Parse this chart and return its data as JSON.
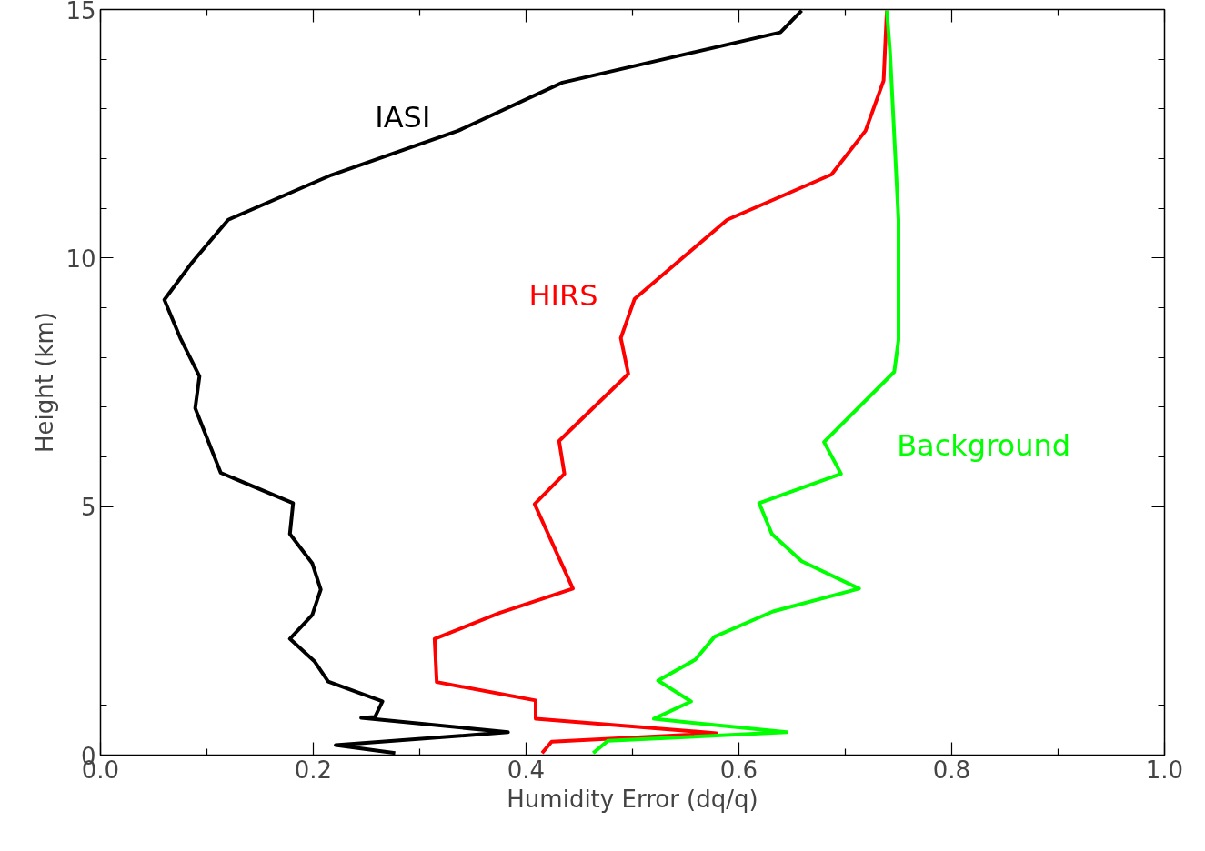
{
  "chart_data": {
    "type": "line",
    "xlabel": "Humidity Error (dq/q)",
    "ylabel": "Height (km)",
    "xlim": [
      0,
      1
    ],
    "ylim": [
      0,
      15
    ],
    "xticks": [
      {
        "value": 0,
        "label": "0.0"
      },
      {
        "value": 0.2,
        "label": "0.2"
      },
      {
        "value": 0.4,
        "label": "0.4"
      },
      {
        "value": 0.6,
        "label": "0.6"
      },
      {
        "value": 0.8,
        "label": "0.8"
      },
      {
        "value": 1.0,
        "label": "1.0"
      }
    ],
    "yticks": [
      0,
      5,
      10,
      15
    ],
    "grid": false,
    "legend": false,
    "series": [
      {
        "name": "IASI",
        "color": "#000000",
        "x": [
          0.277,
          0.221,
          0.383,
          0.245,
          0.258,
          0.265,
          0.214,
          0.201,
          0.178,
          0.199,
          0.207,
          0.199,
          0.178,
          0.181,
          0.113,
          0.089,
          0.093,
          0.075,
          0.06,
          0.086,
          0.12,
          0.217,
          0.336,
          0.434,
          0.639,
          0.659
        ],
        "values": [
          0.04,
          0.2,
          0.46,
          0.75,
          0.77,
          1.08,
          1.48,
          1.89,
          2.34,
          2.82,
          3.33,
          3.86,
          4.45,
          5.07,
          5.68,
          6.98,
          7.62,
          8.39,
          9.16,
          9.91,
          10.77,
          11.67,
          12.56,
          13.53,
          14.54,
          14.98
        ]
      },
      {
        "name": "HIRS",
        "color": "#ff0000",
        "x": [
          0.415,
          0.424,
          0.579,
          0.409,
          0.409,
          0.316,
          0.314,
          0.375,
          0.444,
          0.408,
          0.436,
          0.431,
          0.496,
          0.489,
          0.502,
          0.589,
          0.687,
          0.719,
          0.736,
          0.739
        ],
        "values": [
          0.04,
          0.27,
          0.44,
          0.73,
          1.1,
          1.47,
          2.34,
          2.86,
          3.35,
          5.05,
          5.66,
          6.32,
          7.67,
          8.39,
          9.18,
          10.77,
          11.68,
          12.56,
          13.57,
          14.98
        ]
      },
      {
        "name": "Background",
        "color": "#00ff00",
        "x": [
          0.463,
          0.477,
          0.645,
          0.52,
          0.555,
          0.524,
          0.559,
          0.577,
          0.632,
          0.713,
          0.659,
          0.631,
          0.619,
          0.696,
          0.68,
          0.746,
          0.75,
          0.75,
          0.742,
          0.739
        ],
        "values": [
          0.04,
          0.29,
          0.46,
          0.73,
          1.08,
          1.5,
          1.92,
          2.38,
          2.89,
          3.35,
          3.9,
          4.45,
          5.07,
          5.66,
          6.3,
          7.71,
          8.35,
          10.77,
          14.16,
          14.98
        ]
      }
    ]
  }
}
